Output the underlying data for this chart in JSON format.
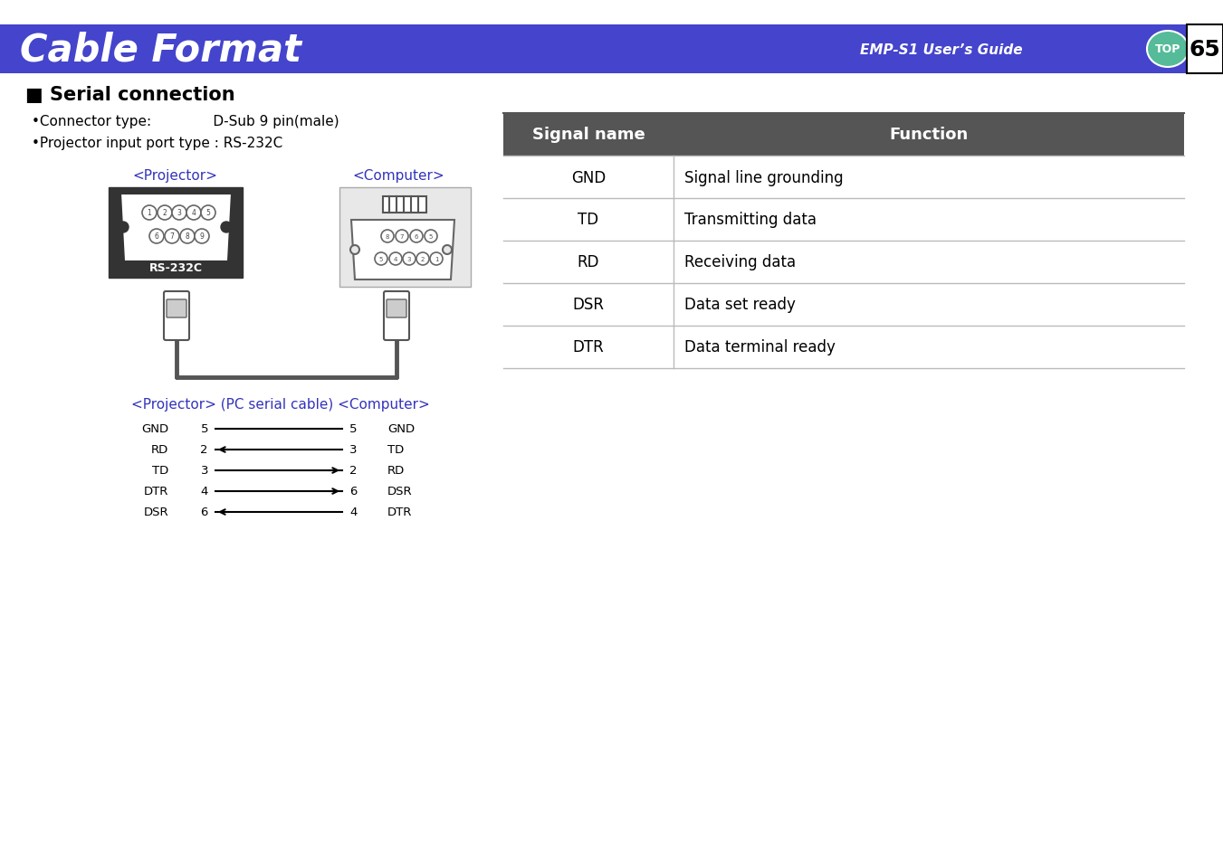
{
  "page_bg": "#ffffff",
  "header_bg": "#4444cc",
  "header_text": "Cable Format",
  "header_text_color": "#ffffff",
  "header_right_text": "EMP-S1 User’s Guide",
  "header_right_text_color": "#ffffff",
  "page_number": "65",
  "top_button_color": "#55bb99",
  "section_title": "■ Serial connection",
  "bullet1": "•Connector type:              D-Sub 9 pin(male)",
  "bullet2": "•Projector input port type : RS-232C",
  "proj_label": "<Projector>",
  "comp_label": "<Computer>",
  "rs232c_label": "RS-232C",
  "cable_label": "<Projector> (PC serial cable) <Computer>",
  "proj_label_color": "#3333bb",
  "comp_label_color": "#3333bb",
  "cable_label_color": "#3333bb",
  "table_header_bg": "#555555",
  "table_header_text_color": "#ffffff",
  "table_col1_header": "Signal name",
  "table_col2_header": "Function",
  "table_rows": [
    [
      "GND",
      "Signal line grounding"
    ],
    [
      "TD",
      "Transmitting data"
    ],
    [
      "RD",
      "Receiving data"
    ],
    [
      "DSR",
      "Data set ready"
    ],
    [
      "DTR",
      "Data terminal ready"
    ]
  ],
  "wiring_rows": [
    [
      "GND",
      "5",
      "5",
      "GND",
      "none"
    ],
    [
      "RD",
      "2",
      "3",
      "TD",
      "left"
    ],
    [
      "TD",
      "3",
      "2",
      "RD",
      "right"
    ],
    [
      "DTR",
      "4",
      "6",
      "DSR",
      "right"
    ],
    [
      "DSR",
      "6",
      "4",
      "DTR",
      "left"
    ]
  ]
}
